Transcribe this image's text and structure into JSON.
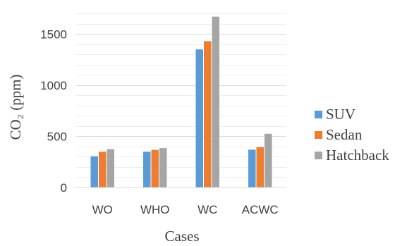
{
  "chart_data": {
    "type": "bar",
    "categories": [
      "WO",
      "WHO",
      "WC",
      "ACWC"
    ],
    "series": [
      {
        "name": "SUV",
        "color": "#5b9bd5",
        "values": [
          305,
          350,
          1350,
          370
        ]
      },
      {
        "name": "Sedan",
        "color": "#ed7d31",
        "values": [
          350,
          368,
          1430,
          395
        ]
      },
      {
        "name": "Hatchback",
        "color": "#a5a5a5",
        "values": [
          375,
          385,
          1670,
          525
        ]
      }
    ],
    "y_ticks": [
      "0",
      "500",
      "1000",
      "1500"
    ],
    "y_tick_values": [
      0,
      500,
      1000,
      1500
    ],
    "ylim": [
      0,
      1750
    ],
    "ylabel": "CO₂ (ppm)",
    "xlabel": "Cases",
    "title": "",
    "grid": true,
    "legend_position": "right"
  }
}
